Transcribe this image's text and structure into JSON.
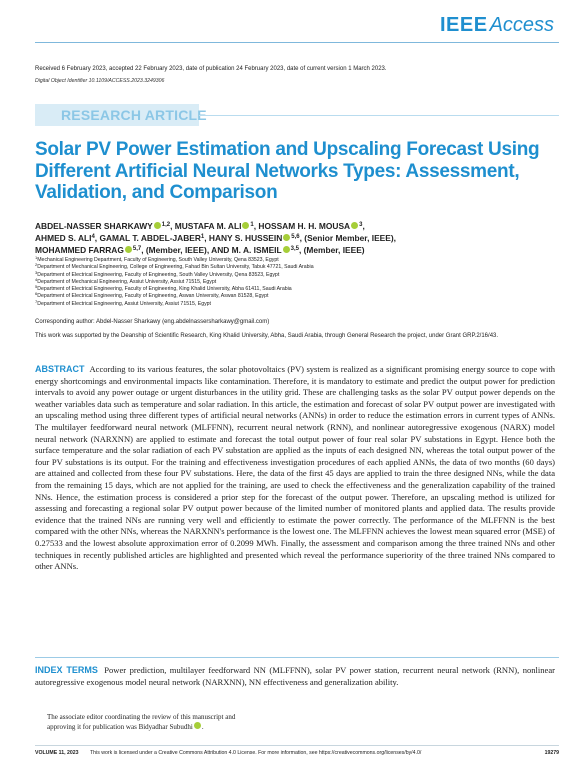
{
  "header": {
    "logo_brand": "IEEE",
    "logo_product": "Access",
    "dates": "Received 6 February 2023, accepted 22 February 2023, date of publication 24 February 2023, date of current version 1 March 2023.",
    "doi": "Digital Object Identifier 10.1109/ACCESS.2023.3249306",
    "article_type": "RESEARCH ARTICLE"
  },
  "title": "Solar PV Power Estimation and Upscaling Forecast Using Different Artificial Neural Networks Types: Assessment, Validation, and Comparison",
  "authors": {
    "a1_name": "ABDEL-NASSER SHARKAWY",
    "a1_aff": "1,2",
    "a2_name": "MUSTAFA M. ALI",
    "a2_aff": "1",
    "a3_name": "HOSSAM H. H. MOUSA",
    "a3_aff": "3",
    "a4_name": "AHMED S. ALI",
    "a4_aff": "4",
    "a5_name": "GAMAL T. ABDEL-JABER",
    "a5_aff": "1",
    "a6_name": "HANY S. HUSSEIN",
    "a6_aff": "5,6",
    "a6_role": ", (Senior Member, IEEE),",
    "a7_name": "MOHAMMED FARRAG",
    "a7_aff": "5,7",
    "a7_role": ", (Member, IEEE), AND",
    "a8_name": "M. A. ISMEIL",
    "a8_aff": "3,5",
    "a8_role": ", (Member, IEEE)"
  },
  "affiliations": [
    {
      "num": "1",
      "text": "Mechanical Engineering Department, Faculty of Engineering, South Valley University, Qena 83523, Egypt"
    },
    {
      "num": "2",
      "text": "Department of Mechanical Engineering, College of Engineering, Fahad Bin Sultan University, Tabuk 47721, Saudi Arabia"
    },
    {
      "num": "3",
      "text": "Department of Electrical Engineering, Faculty of Engineering, South Valley University, Qena 83523, Egypt"
    },
    {
      "num": "4",
      "text": "Department of Mechanical Engineering, Assiut University, Assiut 71515, Egypt"
    },
    {
      "num": "5",
      "text": "Department of Electrical Engineering, Faculty of Engineering, King Khalid University, Abha 61411, Saudi Arabia"
    },
    {
      "num": "6",
      "text": "Department of Electrical Engineering, Faculty of Engineering, Aswan University, Aswan 81528, Egypt"
    },
    {
      "num": "7",
      "text": "Department of Electrical Engineering, Assiut University, Assiut 71515, Egypt"
    }
  ],
  "corresponding": "Corresponding author: Abdel-Nasser Sharkawy (eng.abdelnassersharkawy@gmail.com)",
  "funding": "This work was supported by the Deanship of Scientific Research, King Khalid University, Abha, Saudi Arabia, through General Research the project, under Grant GRP.2/16/43.",
  "abstract": {
    "heading": "ABSTRACT",
    "text": "According to its various features, the solar photovoltaics (PV) system is realized as a significant promising energy source to cope with energy shortcomings and environmental impacts like contamination. Therefore, it is mandatory to estimate and predict the output power for prediction intervals to avoid any power outage or urgent disturbances in the utility grid. These are challenging tasks as the solar PV output power depends on the weather variables data such as temperature and solar radiation. In this article, the estimation and forecast of solar PV output power are investigated with an upscaling method using three different types of artificial neural networks (ANNs) in order to reduce the estimation errors in current types of ANNs. The multilayer feedforward neural network (MLFFNN), recurrent neural network (RNN), and nonlinear autoregressive exogenous (NARX) model neural network (NARXNN) are applied to estimate and forecast the total output power of four real solar PV substations in Egypt. Hence both the surface temperature and the solar radiation of each PV substation are applied as the inputs of each designed NN, whereas the total output power of the four PV substations is its output. For the training and effectiveness investigation procedures of each applied ANNs, the data of two months (60 days) are attained and collected from these four PV substations. Here, the data of the first 45 days are applied to train the three designed NNs, while the data from the remaining 15 days, which are not applied for the training, are used to check the effectiveness and the generalization capability of the trained NNs. Hence, the estimation process is considered a prior step for the forecast of the output power. Therefore, an upscaling method is utilized for assessing and forecasting a regional solar PV output power because of the limited number of monitored plants and applied data. The results provide evidence that the trained NNs are running very well and efficiently to estimate the power correctly. The performance of the MLFFNN is the best compared with the other NNs, whereas the NARXNN's performance is the lowest one. The MLFFNN achieves the lowest mean squared error (MSE) of 0.27533 and the lowest absolute approximation error of 0.2099 MWh. Finally, the assessment and comparison among the three trained NNs and other techniques in recently published articles are highlighted and presented which reveal the performance superiority of the three trained NNs compared to other ANNs."
  },
  "index_terms": {
    "heading": "INDEX TERMS",
    "text": "Power prediction, multilayer feedforward NN (MLFFNN), solar PV power station, recurrent neural network (RNN), nonlinear autoregressive exogenous model neural network (NARXNN), NN effectiveness and generalization ability."
  },
  "editor_note": {
    "line1": "The associate editor coordinating the review of this manuscript and",
    "line2": "approving it for publication was Bidyadhar Subudhi"
  },
  "footer": {
    "volume": "VOLUME 11, 2023",
    "license": "This work is licensed under a Creative Commons Attribution 4.0 License. For more information, see https://creativecommons.org/licenses/by/4.0/",
    "page": "19279"
  },
  "colors": {
    "accent_blue": "#1e8fcf",
    "tag_background": "#d9ecf6",
    "orcid_green": "#a6ce39"
  }
}
